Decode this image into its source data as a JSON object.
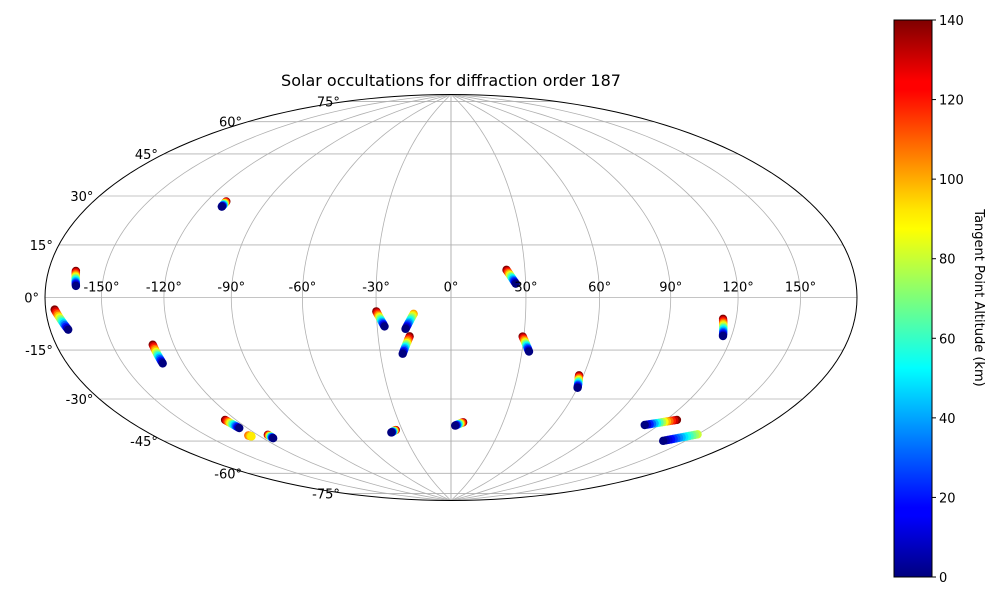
{
  "chart_data": {
    "type": "scatter",
    "title": "Solar occultations for diffraction order 187",
    "projection": "hammer",
    "xlabel": "",
    "ylabel": "",
    "x_unit": "longitude (deg)",
    "y_unit": "latitude (deg)",
    "xlim": [
      -180,
      180
    ],
    "ylim": [
      -90,
      90
    ],
    "grid": true,
    "longitude_ticks": [
      -150,
      -120,
      -90,
      -60,
      -30,
      0,
      30,
      60,
      90,
      120,
      150
    ],
    "longitude_tick_labels": [
      "-150°",
      "-120°",
      "-90°",
      "-60°",
      "-30°",
      "0°",
      "30°",
      "60°",
      "90°",
      "120°",
      "150°"
    ],
    "latitude_ticks": [
      75,
      60,
      45,
      30,
      15,
      0,
      -15,
      -30,
      -45,
      -60,
      -75
    ],
    "latitude_tick_labels": [
      "75°",
      "60°",
      "45°",
      "30°",
      "15°",
      "0°",
      "-15°",
      "-30°",
      "-45°",
      "-60°",
      "-75°"
    ],
    "colorbar": {
      "label": "Tangent Point Altitude (km)",
      "colormap": "jet",
      "range": [
        0,
        140
      ],
      "ticks": [
        0,
        20,
        40,
        60,
        80,
        100,
        120,
        140
      ],
      "tick_labels": [
        "0",
        "20",
        "40",
        "60",
        "80",
        "100",
        "120",
        "140"
      ]
    },
    "color_variable": "altitude_km",
    "tracks": [
      {
        "start": {
          "lon": -110.0,
          "lat": 35.0,
          "alt": 140
        },
        "end": {
          "lon": -110.0,
          "lat": 33.0,
          "alt": 0
        }
      },
      {
        "start": {
          "lon": -165.0,
          "lat": 8.0,
          "alt": 140
        },
        "end": {
          "lon": -163.5,
          "lat": 3.5,
          "alt": 0
        }
      },
      {
        "start": {
          "lon": -175.0,
          "lat": -3.5,
          "alt": 140
        },
        "end": {
          "lon": -170.0,
          "lat": -9.5,
          "alt": 0
        }
      },
      {
        "start": {
          "lon": -130.0,
          "lat": -16.0,
          "alt": 140
        },
        "end": {
          "lon": -130.0,
          "lat": -22.5,
          "alt": 0
        }
      },
      {
        "start": {
          "lon": -126.0,
          "lat": -44.0,
          "alt": 140
        },
        "end": {
          "lon": -124.5,
          "lat": -47.5,
          "alt": 0
        }
      },
      {
        "start": {
          "lon": -126.0,
          "lat": -50.5,
          "alt": 110
        },
        "end": {
          "lon": -125.0,
          "lat": -51.0,
          "alt": 90
        }
      },
      {
        "start": {
          "lon": -114.0,
          "lat": -51.5,
          "alt": 140
        },
        "end": {
          "lon": -114.0,
          "lat": -53.0,
          "alt": 0
        }
      },
      {
        "start": {
          "lon": -30.0,
          "lat": -5.5,
          "alt": 140
        },
        "end": {
          "lon": -27.0,
          "lat": -11.5,
          "alt": 0
        }
      },
      {
        "start": {
          "lon": -15.0,
          "lat": -6.5,
          "alt": 100
        },
        "end": {
          "lon": -18.5,
          "lat": -12.5,
          "alt": 0
        }
      },
      {
        "start": {
          "lon": -17.0,
          "lat": -15.5,
          "alt": 140
        },
        "end": {
          "lon": -20.5,
          "lat": -22.5,
          "alt": 0
        }
      },
      {
        "start": {
          "lon": -34.0,
          "lat": -54.5,
          "alt": 140
        },
        "end": {
          "lon": -37.5,
          "lat": -55.5,
          "alt": 0
        }
      },
      {
        "start": {
          "lon": 7.0,
          "lat": -51.5,
          "alt": 140
        },
        "end": {
          "lon": 2.5,
          "lat": -53.0,
          "alt": 0
        }
      },
      {
        "start": {
          "lon": 22.5,
          "lat": 11.0,
          "alt": 140
        },
        "end": {
          "lon": 26.0,
          "lat": 5.5,
          "alt": 0
        }
      },
      {
        "start": {
          "lon": 29.5,
          "lat": -15.5,
          "alt": 140
        },
        "end": {
          "lon": 33.0,
          "lat": -21.5,
          "alt": 0
        }
      },
      {
        "start": {
          "lon": 58.0,
          "lat": -30.5,
          "alt": 140
        },
        "end": {
          "lon": 60.0,
          "lat": -35.5,
          "alt": 0
        }
      },
      {
        "start": {
          "lon": 114.0,
          "lat": -7.5,
          "alt": 140
        },
        "end": {
          "lon": 116.0,
          "lat": -13.5,
          "alt": 0
        }
      },
      {
        "start": {
          "lon": 126.0,
          "lat": -44.0,
          "alt": 140
        },
        "end": {
          "lon": 112.0,
          "lat": -47.5,
          "alt": 0
        }
      },
      {
        "start": {
          "lon": 150.0,
          "lat": -47.0,
          "alt": 80
        },
        "end": {
          "lon": 137.0,
          "lat": -51.5,
          "alt": 0
        }
      }
    ]
  }
}
